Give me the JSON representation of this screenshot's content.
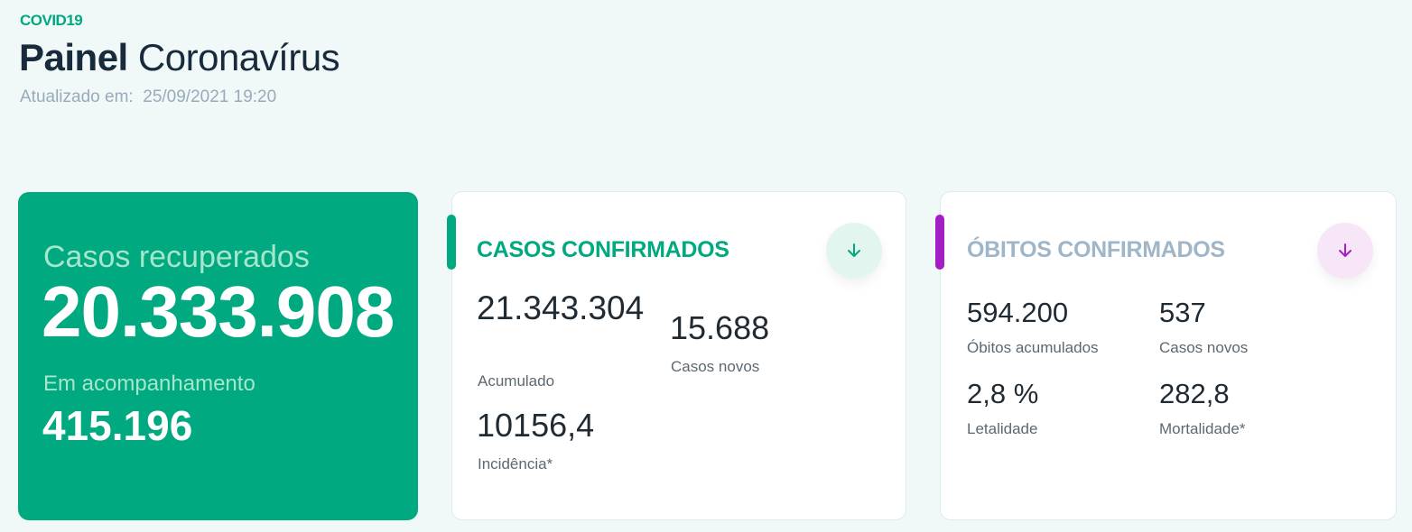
{
  "header": {
    "tag": "COVID19",
    "title_bold": "Painel",
    "title_rest": "Coronavírus",
    "updated_label": "Atualizado em:",
    "updated_value": "25/09/2021 19:20"
  },
  "recovered": {
    "label": "Casos recuperados",
    "value": "20.333.908",
    "followup_label": "Em acompanhamento",
    "followup_value": "415.196",
    "color": "#00a97f"
  },
  "confirmed": {
    "title": "CASOS CONFIRMADOS",
    "accent": "#00a97f",
    "icon": "arrow-down-icon",
    "accumulated_value": "21.343.304",
    "accumulated_label": "Acumulado",
    "new_value": "15.688",
    "new_label": "Casos novos",
    "incidence_value": "10156,4",
    "incidence_label": "Incidência*"
  },
  "deaths": {
    "title": "ÓBITOS CONFIRMADOS",
    "accent": "#a21fc3",
    "icon": "arrow-down-icon",
    "accumulated_value": "594.200",
    "accumulated_label": "Óbitos acumulados",
    "new_value": "537",
    "new_label": "Casos novos",
    "lethality_value": "2,8 %",
    "lethality_label": "Letalidade",
    "mortality_value": "282,8",
    "mortality_label": "Mortalidade*"
  }
}
